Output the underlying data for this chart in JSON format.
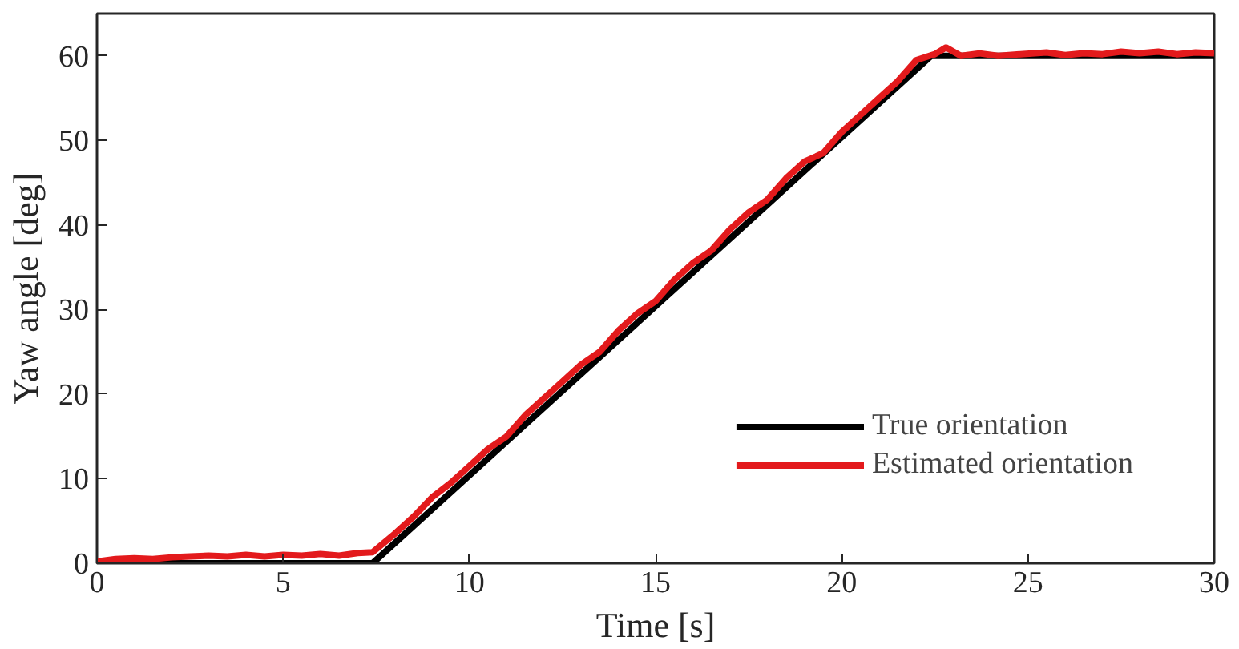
{
  "chart_data": {
    "type": "line",
    "xlabel": "Time [s]",
    "ylabel": "Yaw angle [deg]",
    "xlim": [
      0,
      30
    ],
    "ylim": [
      0,
      65
    ],
    "xticks": [
      0,
      5,
      10,
      15,
      20,
      25,
      30
    ],
    "yticks": [
      0,
      10,
      20,
      30,
      40,
      50,
      60
    ],
    "grid": false,
    "legend": "bottom right",
    "line_style": "solid",
    "marker": "none",
    "series": [
      {
        "name": "True orientation",
        "color": "#000000",
        "x": [
          0,
          7.4,
          22.4,
          30
        ],
        "values": [
          0,
          0,
          60,
          60
        ]
      },
      {
        "name": "Estimated orientation",
        "color": "#e31a1c",
        "x": [
          0,
          0.5,
          1,
          1.5,
          2,
          2.5,
          3,
          3.5,
          4,
          4.5,
          5,
          5.5,
          6,
          6.5,
          7,
          7.4,
          8,
          8.5,
          9,
          9.5,
          10,
          10.5,
          11,
          11.5,
          12,
          12.5,
          13,
          13.5,
          14,
          14.5,
          15,
          15.5,
          16,
          16.5,
          17,
          17.5,
          18,
          18.5,
          19,
          19.5,
          20,
          20.5,
          21,
          21.5,
          22,
          22.5,
          22.8,
          23.2,
          23.7,
          24.2,
          24.8,
          25.5,
          26,
          26.5,
          27,
          27.5,
          28,
          28.5,
          29,
          29.5,
          30
        ],
        "values": [
          0.2,
          0.5,
          0.6,
          0.5,
          0.7,
          0.8,
          0.9,
          0.8,
          1.0,
          0.8,
          1.0,
          0.9,
          1.1,
          0.9,
          1.2,
          1.3,
          3.5,
          5.5,
          7.8,
          9.5,
          11.5,
          13.5,
          15,
          17.5,
          19.5,
          21.5,
          23.5,
          25,
          27.5,
          29.5,
          31,
          33.5,
          35.5,
          37,
          39.5,
          41.5,
          43,
          45.5,
          47.5,
          48.5,
          51,
          53,
          55,
          57,
          59.5,
          60.2,
          61,
          60,
          60.3,
          60,
          60.2,
          60.4,
          60.1,
          60.3,
          60.2,
          60.5,
          60.3,
          60.5,
          60.2,
          60.4,
          60.3
        ]
      }
    ]
  }
}
